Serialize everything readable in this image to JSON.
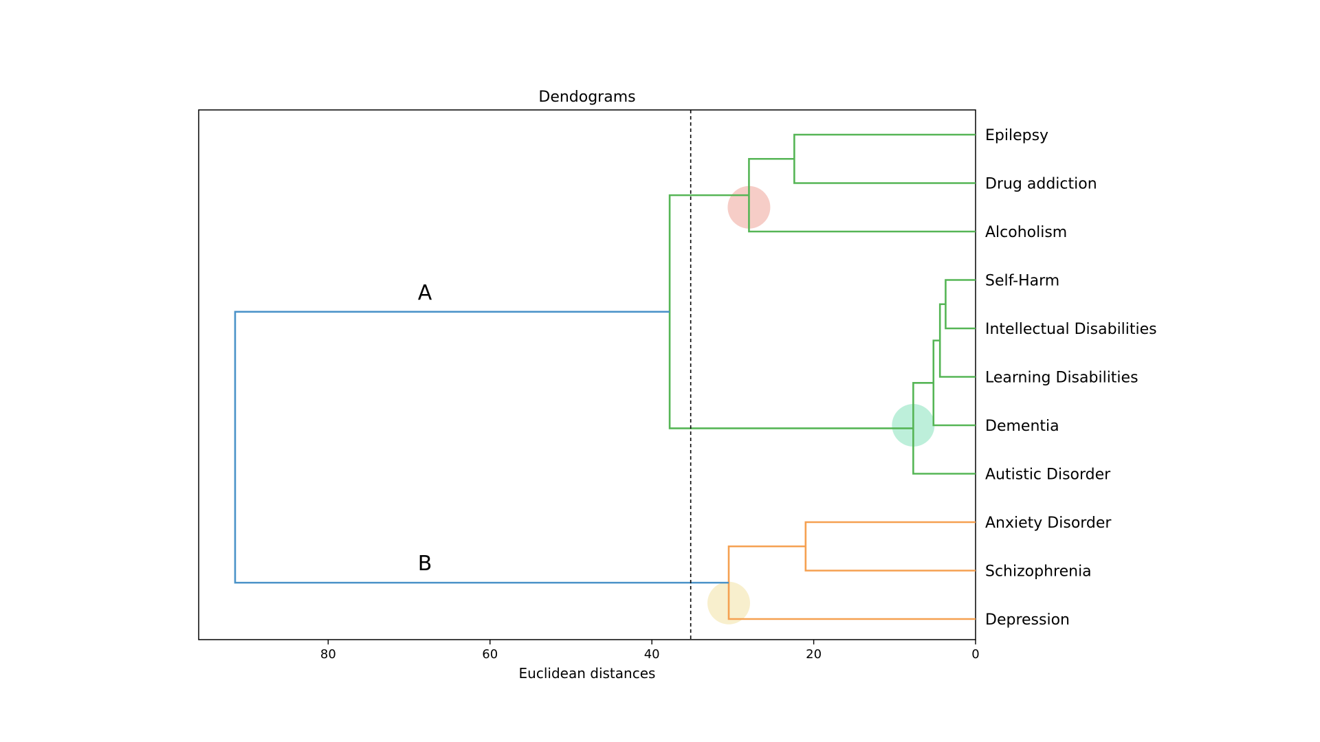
{
  "chart_data": {
    "type": "dendrogram",
    "title": "Dendograms",
    "xlabel": "Euclidean distances",
    "ylabel": "",
    "x_axis_reversed": true,
    "xlim": [
      96,
      0
    ],
    "xticks": [
      80,
      60,
      40,
      20,
      0
    ],
    "threshold": 35.2,
    "leaves": [
      "Epilepsy",
      "Drug addiction",
      "Alcoholism",
      "Self-Harm",
      "Intellectual Disabilities",
      "Learning Disabilities",
      "Dementia",
      "Autistic Disorder",
      "Anxiety Disorder",
      "Schizophrenia",
      "Depression"
    ],
    "merges": [
      {
        "children": [
          "Epilepsy",
          "Drug addiction"
        ],
        "height": 22.4,
        "color": "green"
      },
      {
        "children": [
          "Epilepsy+Drug addiction",
          "Alcoholism"
        ],
        "height": 28.0,
        "color": "green"
      },
      {
        "children": [
          "Self-Harm",
          "Intellectual Disabilities"
        ],
        "height": 3.7,
        "color": "green"
      },
      {
        "children": [
          "Self-Harm+Intellectual Disabilities",
          "Learning Disabilities"
        ],
        "height": 4.4,
        "color": "green"
      },
      {
        "children": [
          "Self-Harm+Intellectual Disabilities+Learning Disabilities",
          "Dementia"
        ],
        "height": 5.2,
        "color": "green"
      },
      {
        "children": [
          "Self-Harm+Intellectual Disabilities+Learning Disabilities+Dementia",
          "Autistic Disorder"
        ],
        "height": 7.7,
        "color": "green"
      },
      {
        "children": [
          "Epilepsy+Drug addiction+Alcoholism",
          "Self-Harm+Intellectual Disabilities+Learning Disabilities+Dementia+Autistic Disorder"
        ],
        "height": 37.8,
        "color": "green"
      },
      {
        "children": [
          "Anxiety Disorder",
          "Schizophrenia"
        ],
        "height": 21.0,
        "color": "orange"
      },
      {
        "children": [
          "Anxiety Disorder+Schizophrenia",
          "Depression"
        ],
        "height": 30.5,
        "color": "orange"
      },
      {
        "children": [
          "cluster A",
          "cluster B"
        ],
        "height": 91.5,
        "color": "blue"
      }
    ],
    "cluster_labels": [
      "A",
      "B"
    ],
    "highlights": [
      {
        "height": 28.0,
        "between": [
          "Drug addiction",
          "Alcoholism"
        ],
        "color": "#f4c4bd"
      },
      {
        "height": 7.7,
        "at_leaf": "Dementia",
        "color": "#b2ecd4"
      },
      {
        "height": 30.5,
        "at_leaf_offset": "Schizophrenia-Depression",
        "color": "#f7ecc4"
      }
    ],
    "colors": {
      "green": "#55b555",
      "orange": "#f5a050",
      "blue": "#4a92c8",
      "threshold": "#000000"
    }
  }
}
